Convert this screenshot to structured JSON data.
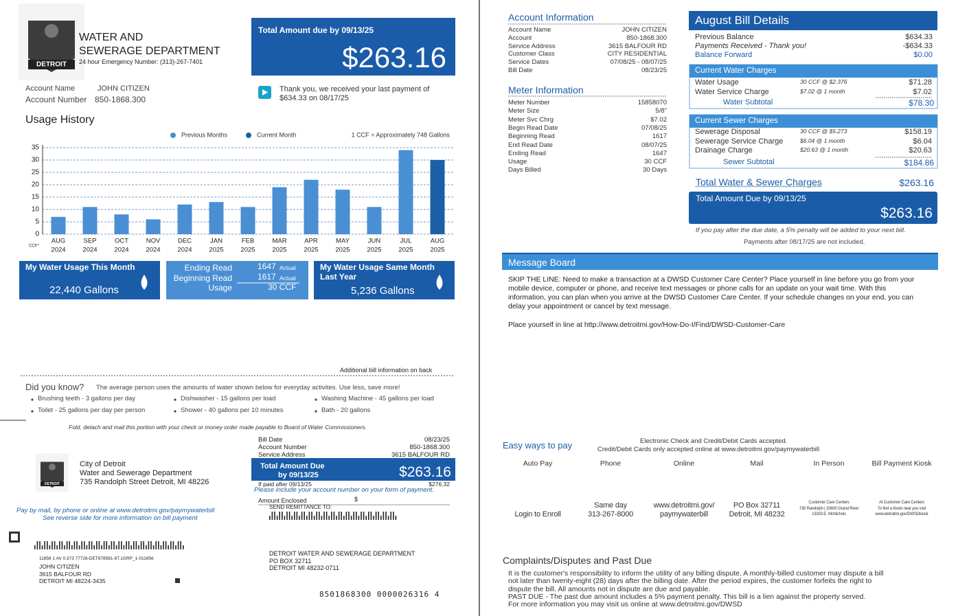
{
  "header": {
    "logo_text": "DETROIT",
    "department": [
      "WATER AND",
      "SEWERAGE DEPARTMENT"
    ],
    "emergency": "24 hour Emergency Number: (313)-267-7401"
  },
  "total_due": {
    "label": "Total Amount due by 09/13/25",
    "amount": "$263.16"
  },
  "last_payment": "Thank you, we received your last payment of $634.33 on 08/17/25",
  "account": [
    [
      "Account Name",
      "JOHN CITIZEN"
    ],
    [
      "Account Number",
      "850-1868.300"
    ]
  ],
  "usage_history": {
    "type": "bar",
    "title": "Usage History",
    "note": "1 CCF = Approximately 748 Gallons",
    "y_unit": "CCF*",
    "categories": [
      "AUG",
      "SEP",
      "OCT",
      "NOV",
      "DEC",
      "JAN",
      "FEB",
      "MAR",
      "APR",
      "MAY",
      "JUN",
      "JUL",
      "AUG"
    ],
    "years": [
      "2024",
      "2024",
      "2024",
      "2024",
      "2024",
      "2025",
      "2025",
      "2025",
      "2025",
      "2025",
      "2025",
      "2025",
      "2025"
    ],
    "series": [
      {
        "name": "Previous Months",
        "color": "#4a8fd4",
        "values": [
          7,
          11,
          8,
          6,
          12,
          13,
          11,
          19,
          22,
          18,
          11,
          34,
          null
        ]
      },
      {
        "name": "Current Month",
        "color": "#1b5fa7",
        "values": [
          null,
          null,
          null,
          null,
          null,
          null,
          null,
          null,
          null,
          null,
          null,
          null,
          30
        ]
      }
    ],
    "ylim": [
      0,
      35
    ],
    "yticks": [
      0,
      5,
      10,
      15,
      20,
      25,
      30,
      35
    ],
    "grid": true
  },
  "tiles": {
    "this_month": {
      "title": "My Water Usage This Month",
      "value": "22,440 Gallons"
    },
    "reads": [
      [
        "Ending Read",
        "1647",
        "Actual"
      ],
      [
        "Beginning Read",
        "1617",
        "Actual"
      ],
      [
        "Usage",
        "30 CCF"
      ]
    ],
    "last_year": {
      "title": "My Water Usage Same Month Last Year",
      "value": "5,236 Gallons"
    }
  },
  "back_note": "Additional bill information on back",
  "did_you_know": {
    "title": "Did you know?",
    "intro": "The average person uses the amounts of water shown below for everyday activites.  Use less, save more!",
    "items": [
      "Brushing teeth - 3 gallons per day",
      "Dishwasher - 15 gallons per load",
      "Washing Machine - 45 gallons per load",
      "Toilet - 25 gallons per day per person",
      "Shower - 40 gallons per 10 minutes",
      "Bath - 20 gallons"
    ]
  },
  "fold_note": "Fold, detach and mail this portion with your check or money order made payable to Board of Water Commissioners.",
  "remittance": {
    "address": [
      "City of Detroit",
      "Water and Sewerage Department",
      "735 Randolph Street Detroit, MI 48226"
    ],
    "pay_note": [
      "Pay by mail, by phone or online at www.detroitmi.gov/paymywaterbill",
      "See reverse side for more information on bill payment"
    ],
    "rows": [
      [
        "Bill Date",
        "08/23/25"
      ],
      [
        "Account Number",
        "850-1868.300"
      ],
      [
        "Service Address",
        "3615 BALFOUR RD"
      ]
    ],
    "total_due": {
      "label": "Total Amount Due",
      "date": "by 09/13/25",
      "amount": "$263.16"
    },
    "late": [
      "If paid after 09/13/25",
      "$276.32"
    ],
    "include_note": "Please include your account number on your form of payment.",
    "enclosed": [
      "Amount Enclosed",
      "$"
    ],
    "send_to": "SEND REMITTANCE TO:",
    "payee": [
      "DETROIT WATER AND SEWERAGE DEPARTMENT",
      "PO BOX 32711",
      "DETROIT  MI  48232-0711"
    ],
    "customer": [
      "11856 1 AV 0.373   77726-DET678581-6T.1GRP_1-011856",
      "JOHN CITIZEN",
      "3615 BALFOUR RD",
      "DETROIT  MI  48224-3435"
    ],
    "scan_line": "8501868300 0000026316 4"
  },
  "account_information": {
    "title": "Account Information",
    "rows": [
      [
        "Account Name",
        "JOHN CITIZEN"
      ],
      [
        "Account",
        "850-1868.300"
      ],
      [
        "Service Address",
        "3615 BALFOUR RD"
      ],
      [
        "Customer Class",
        "CITY RESIDENTIAL"
      ],
      [
        "Service Dates",
        "07/08/25 - 08/07/25"
      ],
      [
        "Bill Date",
        "08/23/25"
      ]
    ]
  },
  "meter_information": {
    "title": "Meter Information",
    "rows": [
      [
        "Meter Number",
        "15858070"
      ],
      [
        "Meter Size",
        "5/8\""
      ],
      [
        "Meter Svc Chrg",
        "$7.02"
      ],
      [
        "Begin Read Date",
        "07/08/25"
      ],
      [
        "Beginning Read",
        "1617"
      ],
      [
        "End Read Date",
        "08/07/25"
      ],
      [
        "Ending Read",
        "1647"
      ],
      [
        "Usage",
        "30 CCF"
      ],
      [
        "Days Billed",
        "30 Days"
      ]
    ]
  },
  "bill_details": {
    "title": "August Bill Details",
    "rows": [
      [
        "Previous Balance",
        "$634.33"
      ],
      [
        "Payments Received - Thank you!",
        "-$634.33"
      ],
      [
        "Balance Forward",
        "$0.00"
      ]
    ],
    "water": {
      "title": "Current Water Charges",
      "rows": [
        [
          "Water Usage",
          "30 CCF @ $2.376",
          "$71.28"
        ],
        [
          "Water Service Charge",
          "$7.02 @ 1 month",
          "$7.02"
        ]
      ],
      "subtotal": [
        "Water Subtotal",
        "$78.30"
      ]
    },
    "sewer": {
      "title": "Current Sewer Charges",
      "rows": [
        [
          "Sewerage Disposal",
          "30 CCF @ $5.273",
          "$158.19"
        ],
        [
          "Sewerage Service Charge",
          "$6.04 @ 1 month",
          "$6.04"
        ],
        [
          "Drainage Charge",
          "$20.63 @ 1 month",
          "$20.63"
        ]
      ],
      "subtotal": [
        "Sewer Subtotal",
        "$184.86"
      ]
    },
    "total_charges": [
      "Total Water & Sewer Charges",
      "$263.16"
    ],
    "total_due": [
      "Total Amount Due by 09/13/25",
      "$263.16"
    ],
    "notes": [
      "If you pay after the due date, a 5% penalty will be added to your next bill.",
      "Payments after 08/17/25 are not included."
    ]
  },
  "message_board": {
    "title": "Message Board",
    "paragraphs": [
      "SKIP THE LINE: Need to make a transaction at a DWSD Customer Care Center? Place yourself in line before you go from your mobile device, computer or phone, and receive text messages or phone calls for an update on your wait time. With this information, you can plan when you arrive at the DWSD Customer Care Center. If your schedule changes on your end, you can delay your appointment or cancel by text message.",
      "Place yourself in line at http://www.detroitmi.gov/How-Do-I/Find/DWSD-Customer-Care"
    ]
  },
  "payment_options": {
    "title": "Easy ways to pay",
    "notes": [
      "Electronic Check and Credit/Debit Cards accepted.",
      "Credit/Debit  Cards  only  accepted  online  at  www.detroitmi.gov/paymywaterbill"
    ],
    "methods": [
      {
        "label": "Auto Pay",
        "details": [
          "Login to Enroll"
        ]
      },
      {
        "label": "Phone",
        "details": [
          "Same day",
          "313-267-8000"
        ]
      },
      {
        "label": "Online",
        "details": [
          "www.detroitmi.gov/",
          "paymywaterbill"
        ]
      },
      {
        "label": "Mail",
        "details": [
          "PO Box 32711",
          "Detroit, MI 48232"
        ]
      },
      {
        "label": "In Person",
        "details": [
          "Customer Care Centers",
          "735 Randolph | 15600 Grand River",
          "13303 E. McNichols"
        ]
      },
      {
        "label": "Bill Payment Kiosk",
        "details": [
          "At Customer Care Centers",
          "To find a Kiosk near you visit",
          "www.detroitmi.gov/DWSDkiosk"
        ]
      }
    ]
  },
  "complaints": {
    "title": "Complaints/Disputes and Past Due",
    "lines": [
      "It is the customer's responsibility to inform the utility of any billing dispute.  A monthly-billed customer may dispute a bill",
      "not later than twenty-eight (28) days after the billing date.  After the period expires, the customer forfeits the right to",
      "dispute the bill.  All amounts not in dispute are due and payable.",
      "PAST DUE - The past due amount includes a 5% payment penalty.  This bill is a lien against the property served.",
      "For more information you may visit us online at www.detroitmi.gov/DWSD"
    ]
  }
}
